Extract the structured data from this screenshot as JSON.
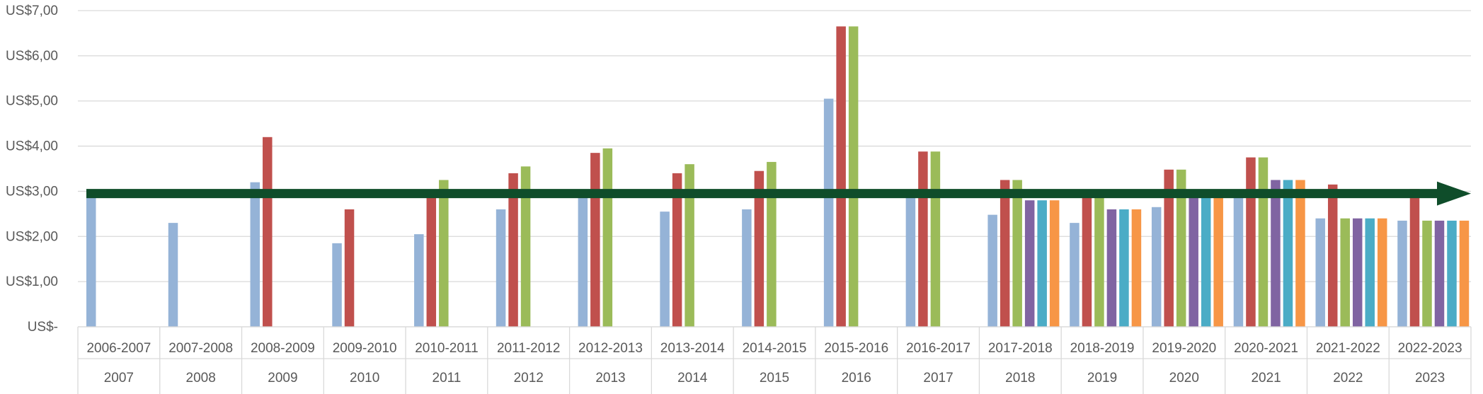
{
  "chart_data": {
    "type": "bar",
    "y_tick_labels": [
      "US$-",
      "US$1,00",
      "US$2,00",
      "US$3,00",
      "US$4,00",
      "US$5,00",
      "US$6,00",
      "US$7,00"
    ],
    "ylim": [
      0,
      7
    ],
    "grid": true,
    "legend": "none",
    "categories": [
      {
        "season": "2006-2007",
        "year": "2007"
      },
      {
        "season": "2007-2008",
        "year": "2008"
      },
      {
        "season": "2008-2009",
        "year": "2009"
      },
      {
        "season": "2009-2010",
        "year": "2010"
      },
      {
        "season": "2010-2011",
        "year": "2011"
      },
      {
        "season": "2011-2012",
        "year": "2012"
      },
      {
        "season": "2012-2013",
        "year": "2013"
      },
      {
        "season": "2013-2014",
        "year": "2014"
      },
      {
        "season": "2014-2015",
        "year": "2015"
      },
      {
        "season": "2015-2016",
        "year": "2016"
      },
      {
        "season": "2016-2017",
        "year": "2017"
      },
      {
        "season": "2017-2018",
        "year": "2018"
      },
      {
        "season": "2018-2019",
        "year": "2019"
      },
      {
        "season": "2019-2020",
        "year": "2020"
      },
      {
        "season": "2020-2021",
        "year": "2021"
      },
      {
        "season": "2021-2022",
        "year": "2022"
      },
      {
        "season": "2022-2023",
        "year": "2023"
      }
    ],
    "series": [
      {
        "color": "#95b3d7",
        "values": [
          2.93,
          2.3,
          3.2,
          1.85,
          2.05,
          2.6,
          2.95,
          2.55,
          2.6,
          5.05,
          2.93,
          2.48,
          2.3,
          2.65,
          2.95,
          2.4,
          2.35
        ]
      },
      {
        "color": "#c0504d",
        "values": [
          null,
          null,
          4.2,
          2.6,
          2.95,
          3.4,
          3.85,
          3.4,
          3.45,
          6.65,
          3.88,
          3.25,
          2.95,
          3.48,
          3.75,
          3.15,
          3.05
        ]
      },
      {
        "color": "#9bbb59",
        "values": [
          null,
          null,
          null,
          null,
          3.25,
          3.55,
          3.95,
          3.6,
          3.65,
          6.65,
          3.88,
          3.25,
          2.95,
          3.48,
          3.75,
          2.4,
          2.35
        ]
      },
      {
        "color": "#8064a2",
        "values": [
          null,
          null,
          null,
          null,
          null,
          null,
          null,
          null,
          null,
          null,
          null,
          2.8,
          2.6,
          2.95,
          3.25,
          2.4,
          2.35
        ]
      },
      {
        "color": "#4bacc6",
        "values": [
          null,
          null,
          null,
          null,
          null,
          null,
          null,
          null,
          null,
          null,
          null,
          2.8,
          2.6,
          2.95,
          3.25,
          2.4,
          2.35
        ]
      },
      {
        "color": "#f79646",
        "values": [
          null,
          null,
          null,
          null,
          null,
          null,
          null,
          null,
          null,
          null,
          null,
          2.8,
          2.6,
          2.95,
          3.25,
          2.4,
          2.35
        ]
      }
    ],
    "annotation_arrow": {
      "y_value": 2.95,
      "color": "#0f4d2a"
    }
  }
}
